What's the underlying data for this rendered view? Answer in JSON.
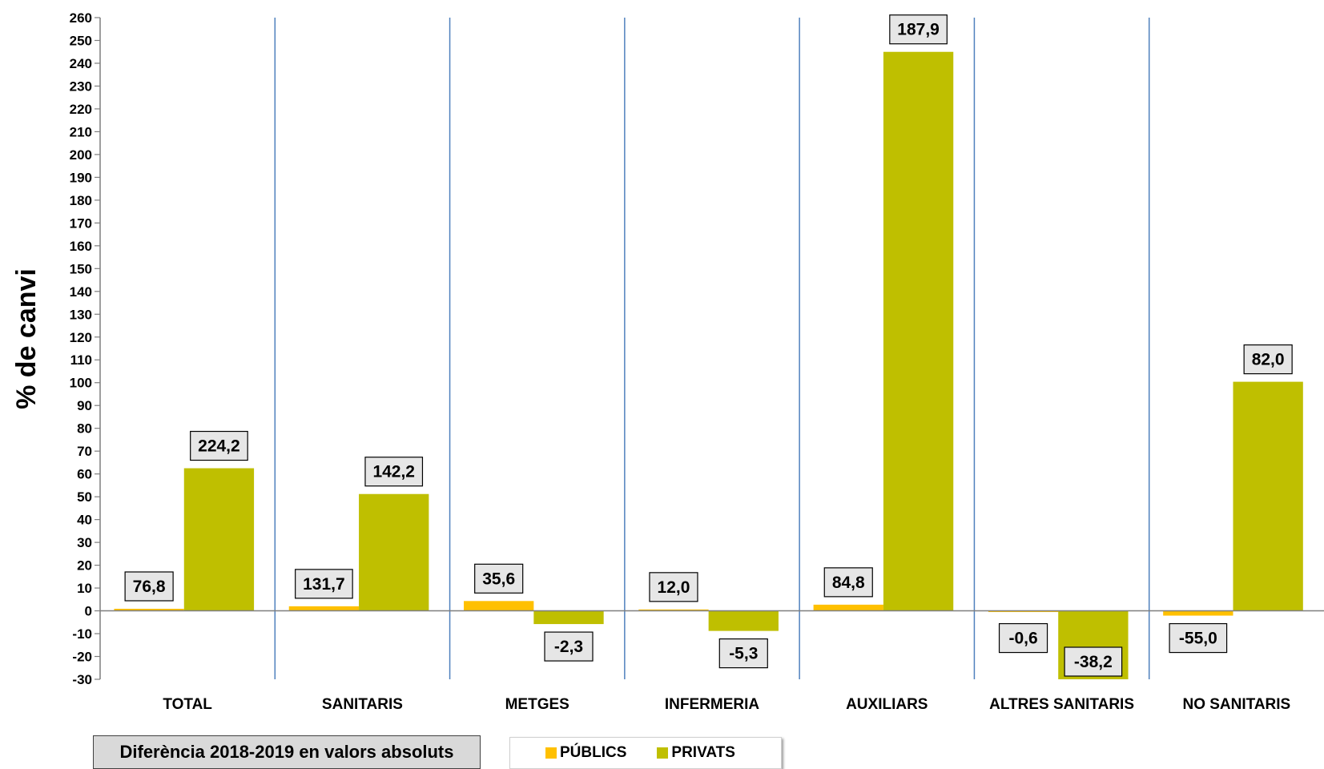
{
  "chart_data": {
    "type": "bar",
    "ylabel": "% de  canvi",
    "xlabel": "",
    "ylim": [
      -30,
      260
    ],
    "ytick_step": 10,
    "grid": false,
    "categories": [
      "TOTAL",
      "SANITARIS",
      "METGES",
      "INFERMERIA",
      "AUXILIARS",
      "ALTRES SANITARIS",
      "NO SANITARIS"
    ],
    "series": [
      {
        "name": "PÚBLICS",
        "color": "#ffc000",
        "values": [
          0.9,
          2.0,
          4.3,
          0.6,
          2.7,
          -0.1,
          -2.1
        ],
        "data_labels": [
          "76,8",
          "131,7",
          "35,6",
          "12,0",
          "84,8",
          "-0,6",
          "-55,0"
        ]
      },
      {
        "name": "PRIVATS",
        "color": "#bfbf00",
        "values": [
          62.5,
          51.2,
          -5.8,
          -8.8,
          245.0,
          -30.0,
          100.4
        ],
        "data_labels": [
          "224,2",
          "142,2",
          "-2,3",
          "-5,3",
          "187,9",
          "-38,2",
          "82,0"
        ]
      }
    ],
    "note": "Diferència  2018-2019 en valors absoluts",
    "legend_placement": "bottom"
  },
  "colors": {
    "divider": "#4f81bd",
    "axis": "#7f7f7f",
    "label_box": "#e6e6e6"
  }
}
